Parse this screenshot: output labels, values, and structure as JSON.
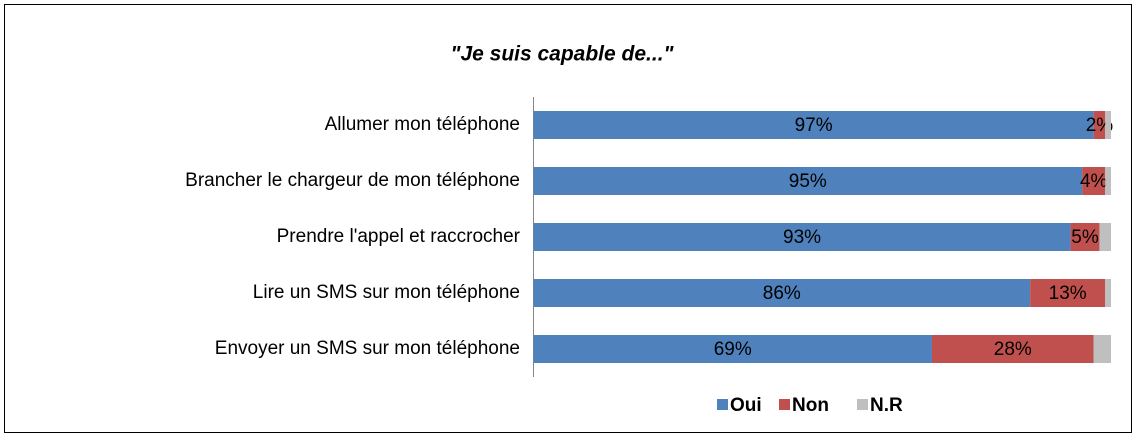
{
  "chart_data": {
    "type": "stacked_bar_horizontal",
    "title": "\"Je suis capable de...\"",
    "categories": [
      "Allumer mon téléphone",
      "Brancher le chargeur de mon téléphone",
      "Prendre l'appel et raccrocher",
      "Lire un SMS sur mon téléphone",
      "Envoyer un SMS sur mon téléphone"
    ],
    "series": [
      {
        "name": "Oui",
        "color": "#4f81bd",
        "values": [
          97,
          95,
          93,
          86,
          69
        ],
        "value_labels": [
          "97%",
          "95%",
          "93%",
          "86%",
          "69%"
        ]
      },
      {
        "name": "Non",
        "color": "#c0504d",
        "values": [
          2,
          4,
          5,
          13,
          28
        ],
        "value_labels": [
          "2%",
          "4%",
          "5%",
          "13%",
          "28%"
        ]
      },
      {
        "name": "N.R",
        "color": "#bfbfbf",
        "values": [
          1,
          1,
          2,
          1,
          3
        ]
      }
    ],
    "xlim": [
      0,
      100
    ],
    "legend": "bottom"
  }
}
